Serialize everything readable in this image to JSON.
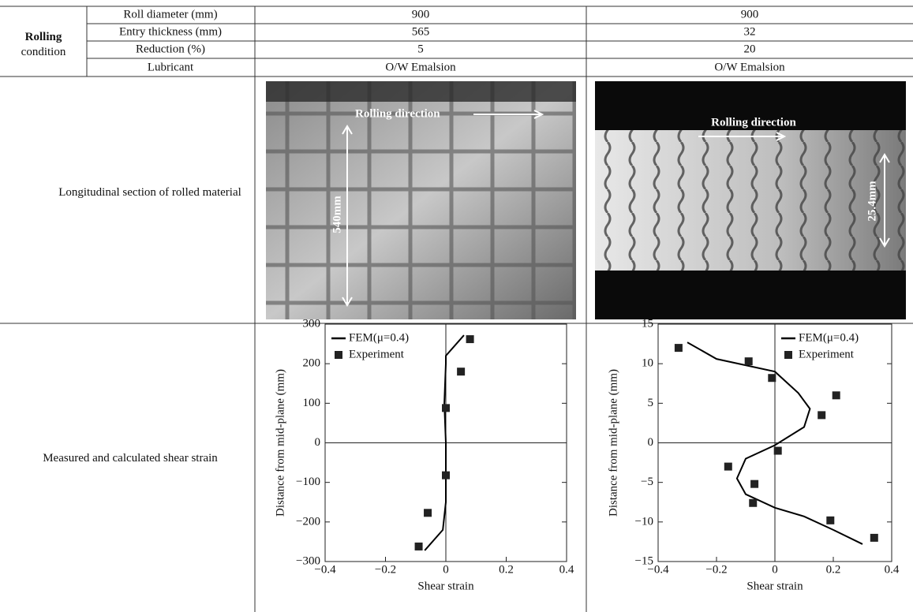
{
  "table": {
    "group_label": "Rolling condition",
    "rows": [
      [
        "Roll diameter (mm)",
        "900",
        "900"
      ],
      [
        "Entry thickness (mm)",
        "565",
        "32"
      ],
      [
        "Reduction (%)",
        "5",
        "20"
      ],
      [
        "Lubricant",
        "O/W Emalsion",
        "O/W Emalsion"
      ]
    ],
    "photo_row": {
      "label": "Longitudinal section of rolled material",
      "photos": [
        {
          "direction": "Rolling direction",
          "dimension": "540mm"
        },
        {
          "direction": "Rolling direction",
          "dimension": "25.4mm"
        }
      ]
    },
    "chart_row_label": "Measured and calculated shear strain"
  },
  "chart_data": [
    {
      "type": "line",
      "x_label": "Shear strain",
      "y_label": "Distance from mid-plane (mm)",
      "xlim": [
        -0.4,
        0.4
      ],
      "ylim": [
        -300,
        300
      ],
      "xticks": [
        {
          "value": -0.4,
          "label": "−0.4"
        },
        {
          "value": -0.2,
          "label": "−0.2"
        },
        0,
        0.2,
        0.4
      ],
      "yticks": [
        {
          "value": -300,
          "label": "−300"
        },
        {
          "value": -200,
          "label": "−200"
        },
        {
          "value": -100,
          "label": "−100"
        },
        0,
        100,
        200,
        300
      ],
      "zero_lines": true,
      "legend": "upper-left",
      "series": [
        {
          "name": "FEM(μ=0.4)",
          "mode": "line",
          "color": "#000000",
          "x": [
            -0.07,
            -0.01,
            0,
            0,
            -0.005,
            0,
            0,
            0.06
          ],
          "values": [
            -272,
            -220,
            -150,
            0,
            100,
            200,
            220,
            272
          ]
        },
        {
          "name": "Experiment",
          "mode": "markers",
          "color": "#222222",
          "x": [
            0.08,
            0.05,
            0,
            0,
            -0.06,
            -0.09
          ],
          "values": [
            262,
            180,
            88,
            -82,
            -177,
            -262
          ]
        }
      ]
    },
    {
      "type": "line",
      "x_label": "Shear strain",
      "y_label": "Distance from mid-plane (mm)",
      "xlim": [
        -0.4,
        0.4
      ],
      "ylim": [
        -15,
        15
      ],
      "xticks": [
        {
          "value": -0.4,
          "label": "−0.4"
        },
        {
          "value": -0.2,
          "label": "−0.2"
        },
        0,
        0.2,
        0.4
      ],
      "yticks": [
        {
          "value": -15,
          "label": "−15"
        },
        {
          "value": -10,
          "label": "−10"
        },
        {
          "value": -5,
          "label": "−5"
        },
        0,
        5,
        10,
        15
      ],
      "zero_lines": true,
      "legend": "upper-right",
      "series": [
        {
          "name": "FEM(μ=0.4)",
          "mode": "line",
          "color": "#000000",
          "x": [
            -0.3,
            -0.2,
            0,
            0.08,
            0.12,
            0.1,
            0,
            -0.1,
            -0.13,
            -0.1,
            0,
            0.1,
            0.2,
            0.3
          ],
          "values": [
            12.7,
            10.6,
            9,
            6.3,
            4.3,
            2,
            -0.3,
            -2,
            -4.5,
            -6.5,
            -8.2,
            -9.3,
            -11,
            -12.8
          ]
        },
        {
          "name": "Experiment",
          "mode": "markers",
          "color": "#222222",
          "x": [
            -0.33,
            -0.09,
            -0.01,
            0.21,
            0.16,
            0.01,
            -0.16,
            -0.07,
            -0.075,
            0.19,
            0.34
          ],
          "values": [
            12,
            10.3,
            8.2,
            6,
            3.5,
            -1,
            -3,
            -5.2,
            -7.6,
            -9.8,
            -12
          ]
        }
      ]
    }
  ]
}
